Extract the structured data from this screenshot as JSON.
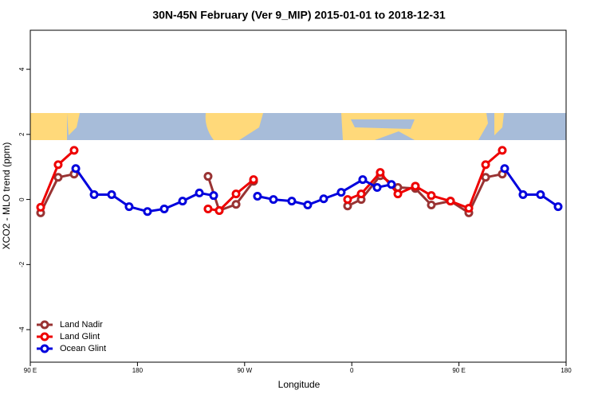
{
  "chart_data": {
    "type": "line",
    "title": "30N-45N February (Ver 9_MIP)   2015-01-01 to 2018-12-31",
    "xlabel": "Longitude",
    "ylabel": "XCO2 - MLO trend (ppm)",
    "xlim": [
      90,
      540
    ],
    "xticks": [
      {
        "value": 90,
        "label": "90 E"
      },
      180,
      {
        "value": 270,
        "label": "90 W"
      },
      {
        "value": 360,
        "label": "0"
      },
      {
        "value": 450,
        "label": "90 E"
      },
      {
        "value": 540,
        "label": "180"
      }
    ],
    "ylim": [
      -5,
      5.2
    ],
    "yticks": [
      -4,
      -2,
      0,
      2,
      4
    ],
    "legend": "bottom-left",
    "series": [
      {
        "name": "Land Nadir",
        "color": "#993333",
        "x": [
          98.7,
          113.4,
          126.8,
          null,
          239.3,
          248.7,
          262.8,
          277.5,
          null,
          356.5,
          367.9,
          383.9,
          398.7,
          413.4,
          426.8,
          442.9,
          458.3,
          472.4,
          486.4
        ],
        "values": [
          -0.41,
          0.68,
          0.78,
          null,
          0.71,
          -0.34,
          -0.15,
          0.56,
          null,
          -0.2,
          0.0,
          0.73,
          0.37,
          0.34,
          -0.17,
          -0.05,
          -0.41,
          0.68,
          0.78
        ]
      },
      {
        "name": "Land Glint",
        "color": "#ee0000",
        "x": [
          98.7,
          113.4,
          126.8,
          null,
          239.3,
          248.7,
          262.8,
          277.5,
          null,
          356.5,
          367.9,
          383.9,
          398.7,
          413.4,
          426.8,
          442.9,
          458.3,
          472.4,
          486.4
        ],
        "values": [
          -0.24,
          1.07,
          1.51,
          null,
          -0.29,
          -0.34,
          0.17,
          0.61,
          null,
          0.0,
          0.17,
          0.83,
          0.17,
          0.41,
          0.12,
          -0.05,
          -0.27,
          1.07,
          1.51
        ]
      },
      {
        "name": "Ocean Glint",
        "color": "#0000dd",
        "x": [
          128.2,
          143.6,
          158.3,
          173,
          188.4,
          202.5,
          217.9,
          232,
          244,
          null,
          280.8,
          294.2,
          309.6,
          323,
          336.4,
          351.1,
          369.2,
          381.3,
          393.3,
          null,
          488.4,
          503.8,
          518.5,
          533.3
        ],
        "values": [
          0.95,
          0.15,
          0.15,
          -0.22,
          -0.37,
          -0.29,
          -0.05,
          0.2,
          0.12,
          null,
          0.1,
          0.0,
          -0.05,
          -0.17,
          0.02,
          0.22,
          0.61,
          0.37,
          0.46,
          null,
          0.95,
          0.15,
          0.15,
          -0.22
        ]
      }
    ]
  }
}
